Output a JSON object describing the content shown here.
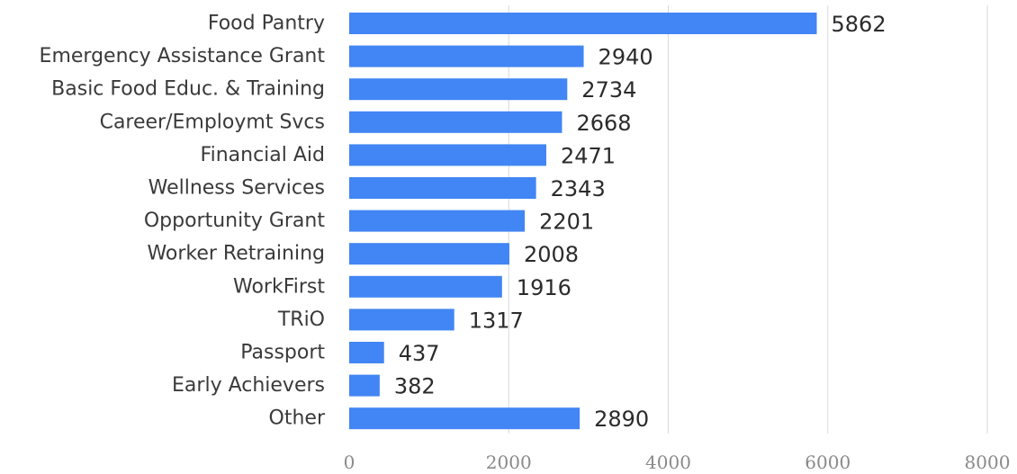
{
  "chart_data": {
    "type": "bar",
    "orientation": "horizontal",
    "categories": [
      "Food Pantry",
      "Emergency Assistance Grant",
      "Basic Food Educ. & Training",
      "Career/Employmt Svcs",
      "Financial Aid",
      "Wellness Services",
      "Opportunity Grant",
      "Worker Retraining",
      "WorkFirst",
      "TRiO",
      "Passport",
      "Early Achievers",
      "Other"
    ],
    "values": [
      5862,
      2940,
      2734,
      2668,
      2471,
      2343,
      2201,
      2008,
      1916,
      1317,
      437,
      382,
      2890
    ],
    "xlim": [
      0,
      8000
    ],
    "xticks": [
      0,
      2000,
      4000,
      6000,
      8000
    ],
    "title": "",
    "xlabel": "",
    "ylabel": "",
    "grid": "vertical",
    "legend": "none",
    "bar_color": "#4285f4"
  }
}
